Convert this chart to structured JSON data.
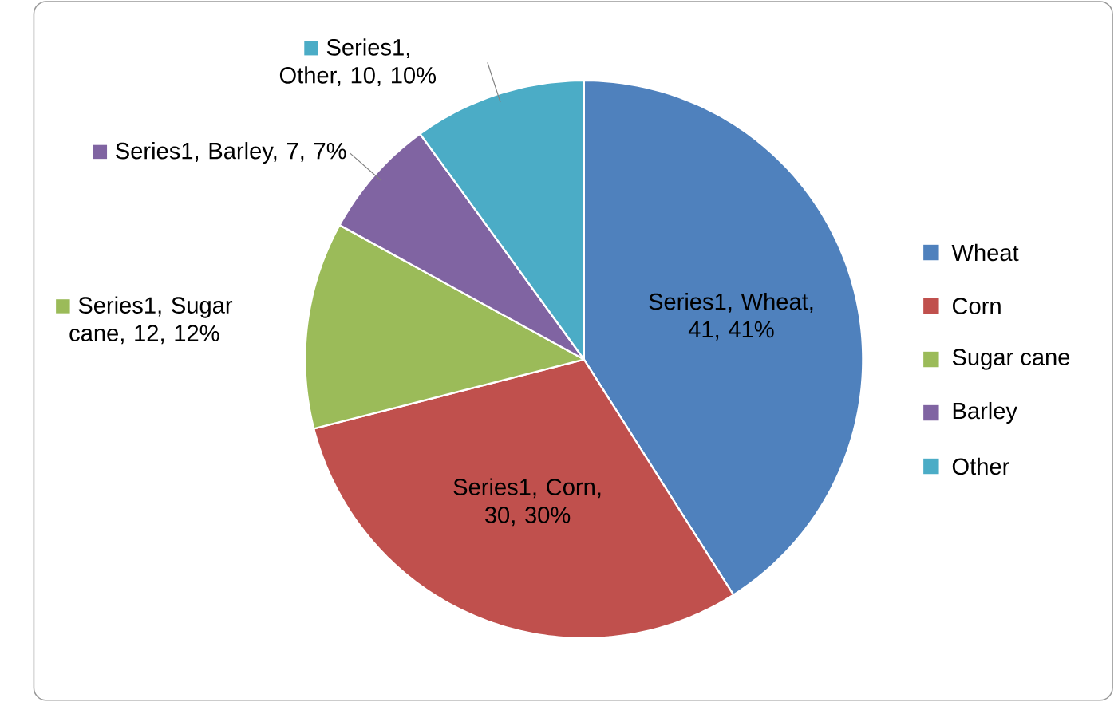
{
  "chart_data": {
    "type": "pie",
    "categories": [
      "Wheat",
      "Corn",
      "Sugar cane",
      "Barley",
      "Other"
    ],
    "values": [
      41,
      30,
      12,
      7,
      10
    ],
    "colors": [
      "#4f81bd",
      "#c0504d",
      "#9bbb59",
      "#8064a2",
      "#4bacc6"
    ],
    "value_labels": [
      "Series1, Wheat, 41, 41%",
      "Series1, Corn, 30, 30%",
      "Series1, Sugar cane, 12, 12%",
      "Series1, Barley, 7, 7%",
      "Series1, Other, 10, 10%"
    ],
    "legend": "right"
  }
}
